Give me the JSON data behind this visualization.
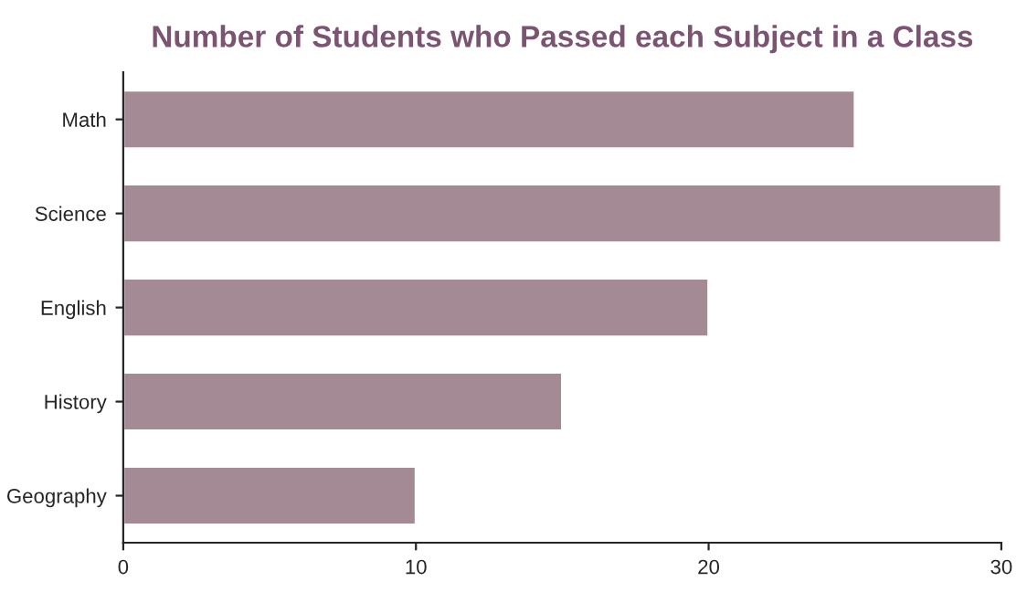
{
  "chart_data": {
    "type": "bar",
    "orientation": "horizontal",
    "title": "Number of Students who Passed each Subject in a Class",
    "categories": [
      "Math",
      "Science",
      "English",
      "History",
      "Geography"
    ],
    "values": [
      25,
      30,
      20,
      15,
      10
    ],
    "color": "#a48a94",
    "xlim": [
      0,
      30
    ],
    "xticks": [
      0,
      10,
      20,
      30
    ],
    "grid": false,
    "legend": false
  }
}
